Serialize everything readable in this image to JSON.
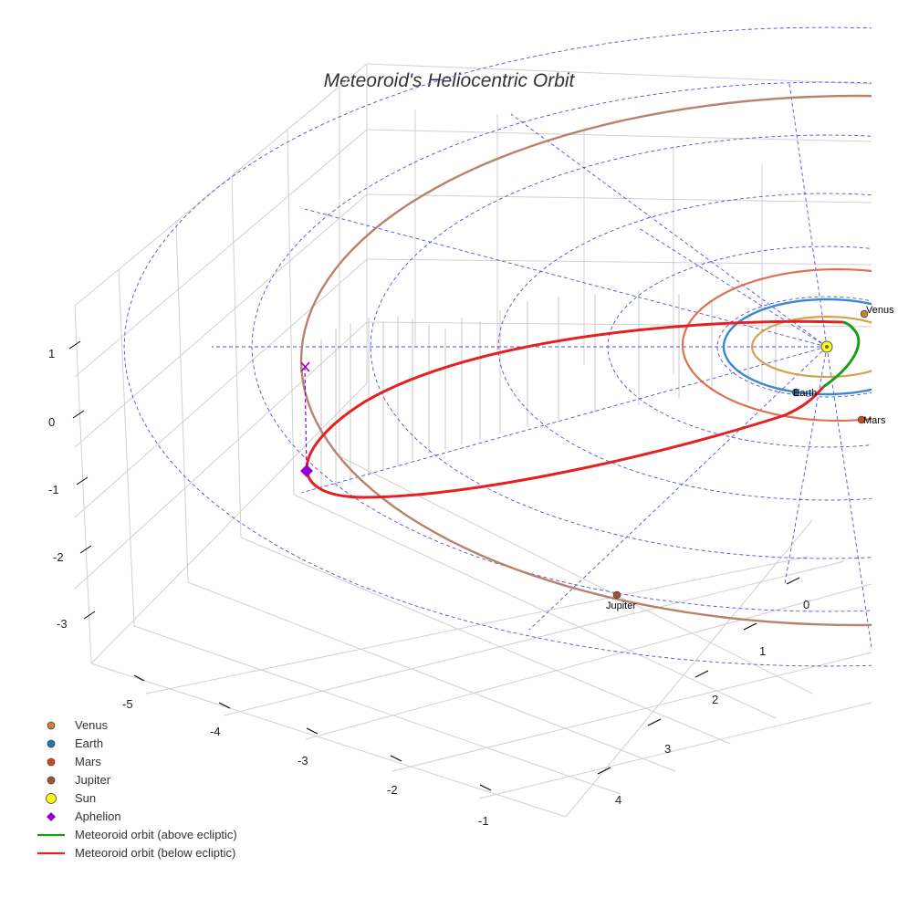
{
  "chart_data": {
    "type": "scatter3d",
    "title": "Meteoroid's Heliocentric Orbit",
    "axes": {
      "x": {
        "ticks": [
          -5,
          -4,
          -3,
          -2,
          -1
        ]
      },
      "y": {
        "ticks": [
          0,
          1,
          2,
          3,
          4
        ]
      },
      "z": {
        "ticks": [
          1,
          0,
          -1,
          -2,
          -3
        ]
      }
    },
    "bodies": [
      {
        "name": "Venus",
        "label": "Venus",
        "color": "#cd7f32"
      },
      {
        "name": "Earth",
        "label": "Earth",
        "color": "#1f77b4"
      },
      {
        "name": "Mars",
        "label": "Mars",
        "color": "#d2481e"
      },
      {
        "name": "Jupiter",
        "label": "Jupiter",
        "color": "#a0522d"
      }
    ],
    "orbit_colors": {
      "venus": "#d4a24c",
      "earth": "#3a87cf",
      "mars": "#e07050",
      "jupiter": "#b8836a",
      "grid": "#5050e0"
    },
    "legend": [
      {
        "label": "Venus",
        "marker": "circle",
        "color": "#cd7f32"
      },
      {
        "label": "Earth",
        "marker": "circle",
        "color": "#1f77b4"
      },
      {
        "label": "Mars",
        "marker": "circle",
        "color": "#d2481e"
      },
      {
        "label": "Jupiter",
        "marker": "circle",
        "color": "#a0522d"
      },
      {
        "label": "Sun",
        "marker": "circle-large",
        "color": "#ffff00"
      },
      {
        "label": "Aphelion",
        "marker": "diamond",
        "color": "#9400d3"
      },
      {
        "label": "Meteoroid orbit (above ecliptic)",
        "marker": "line",
        "color": "#1a9c1a"
      },
      {
        "label": "Meteoroid orbit (below ecliptic)",
        "marker": "line",
        "color": "#e62020"
      }
    ]
  }
}
